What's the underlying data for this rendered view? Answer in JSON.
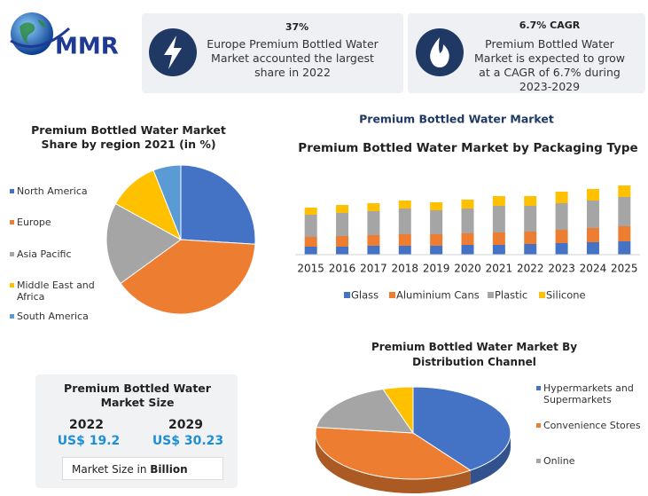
{
  "header": {
    "logo": "MMR",
    "cards": [
      {
        "title": "37%",
        "text": "Europe Premium Bottled Water Market accounted the largest share in 2022"
      },
      {
        "title": "6.7% CAGR",
        "text": "Premium Bottled Water Market is expected to grow at a CAGR of 6.7% during 2023-2029"
      }
    ]
  },
  "heading": "Premium Bottled Water Market",
  "chart_data": [
    {
      "type": "pie",
      "title": "Premium Bottled Water Market Share by region 2021 (in %)",
      "categories": [
        "North America",
        "Europe",
        "Asia Pacific",
        "Middle East and Africa",
        "South America"
      ],
      "values": [
        26,
        39,
        18,
        11,
        6
      ],
      "colors": [
        "#4472c4",
        "#ed7d31",
        "#a5a5a5",
        "#ffc000",
        "#5b9bd5"
      ]
    },
    {
      "type": "bar",
      "stacked": true,
      "title": "Premium Bottled Water Market by Packaging Type",
      "categories": [
        "2015",
        "2016",
        "2017",
        "2018",
        "2019",
        "2020",
        "2021",
        "2022",
        "2023",
        "2024",
        "2025"
      ],
      "series": [
        {
          "name": "Glass",
          "color": "#4472c4",
          "values": [
            9,
            9,
            10,
            10,
            10,
            11,
            11,
            12,
            13,
            14,
            15
          ]
        },
        {
          "name": "Aluminium Cans",
          "color": "#ed7d31",
          "values": [
            11,
            12,
            12,
            13,
            13,
            13,
            14,
            14,
            15,
            16,
            17
          ]
        },
        {
          "name": "Plastic",
          "color": "#a5a5a5",
          "values": [
            25,
            26,
            27,
            29,
            27,
            28,
            30,
            29,
            30,
            31,
            33
          ]
        },
        {
          "name": "Silicone",
          "color": "#ffc000",
          "values": [
            8,
            9,
            9,
            9,
            9,
            10,
            11,
            11,
            13,
            13,
            13
          ]
        }
      ]
    },
    {
      "type": "pie",
      "three_d": true,
      "title": "Premium Bottled Water Market By Distribution Channel",
      "categories": [
        "Hypermarkets and Supermarkets",
        "Convenience Stores",
        "Online",
        null
      ],
      "values": [
        40,
        37,
        18,
        5
      ],
      "colors": [
        "#4472c4",
        "#ed7d31",
        "#a5a5a5",
        "#ffc000"
      ]
    }
  ],
  "market_size": {
    "title": "Premium Bottled Water Market Size",
    "years": [
      {
        "year": "2022",
        "value": "US$ 19.2"
      },
      {
        "year": "2029",
        "value": "US$ 30.23"
      }
    ],
    "note": "Market Size in",
    "unit": "Billion"
  }
}
